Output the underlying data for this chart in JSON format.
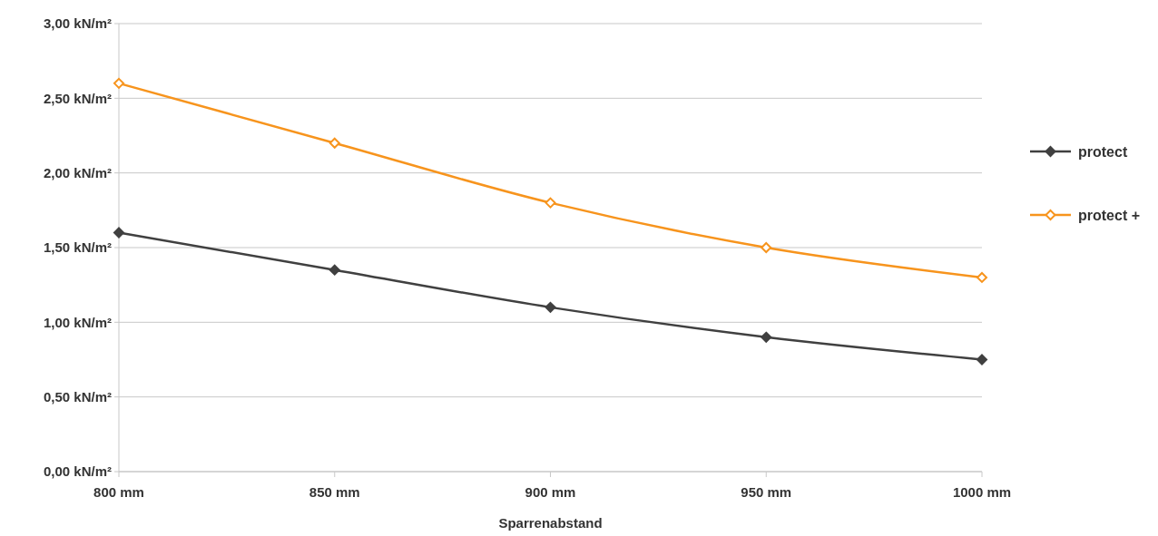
{
  "chart_data": {
    "type": "line",
    "xlabel": "Sparrenabstand",
    "x": [
      800,
      850,
      900,
      950,
      1000
    ],
    "xlim": [
      800,
      1000
    ],
    "xticks": [
      {
        "value": 800,
        "label": "800 mm"
      },
      {
        "value": 850,
        "label": "850 mm"
      },
      {
        "value": 900,
        "label": "900 mm"
      },
      {
        "value": 950,
        "label": "950 mm"
      },
      {
        "value": 1000,
        "label": "1000 mm"
      }
    ],
    "ylim": [
      0,
      3
    ],
    "yticks": [
      {
        "value": 0,
        "label": "0,00 kN/m²"
      },
      {
        "value": 0.5,
        "label": "0,50 kN/m²"
      },
      {
        "value": 1,
        "label": "1,00 kN/m²"
      },
      {
        "value": 1.5,
        "label": "1,50 kN/m²"
      },
      {
        "value": 2,
        "label": "2,00 kN/m²"
      },
      {
        "value": 2.5,
        "label": "2,50 kN/m²"
      },
      {
        "value": 3,
        "label": "3,00 kN/m²"
      }
    ],
    "series": [
      {
        "name": "protect",
        "color": "#404040",
        "values": [
          1.6,
          1.35,
          1.1,
          0.9,
          0.75
        ]
      },
      {
        "name": "protect +",
        "color": "#f7941d",
        "values": [
          2.6,
          2.2,
          1.8,
          1.5,
          1.3
        ]
      }
    ],
    "grid": "y",
    "legend": "right",
    "marker": "diamond",
    "line_style": "solid"
  }
}
